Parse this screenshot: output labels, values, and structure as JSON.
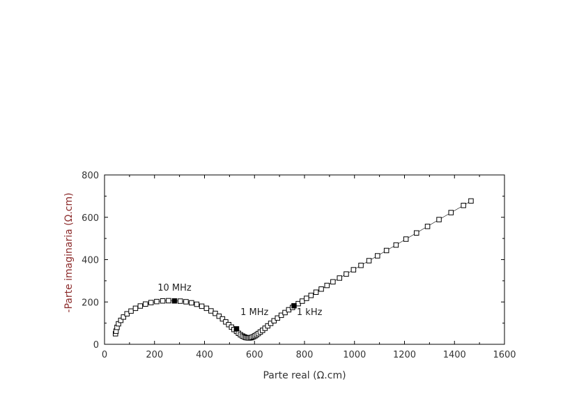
{
  "chart_data": {
    "type": "scatter",
    "xlabel": "Parte real (Ω.cm)",
    "ylabel": "-Parte imaginaria (Ω.cm)",
    "xlim": [
      0,
      1600
    ],
    "ylim": [
      0,
      800
    ],
    "xticks": [
      0,
      200,
      400,
      600,
      800,
      1000,
      1200,
      1400,
      1600
    ],
    "yticks": [
      0,
      200,
      400,
      600,
      800
    ],
    "grid": false,
    "colors": {
      "axis": "#000000",
      "xlabel": "#333333",
      "ylabel": "#8b2a2a",
      "marker": "#000000"
    },
    "series": [
      {
        "marker": "open-square",
        "points": [
          [
            44,
            50
          ],
          [
            46,
            62
          ],
          [
            50,
            80
          ],
          [
            56,
            97
          ],
          [
            65,
            113
          ],
          [
            76,
            129
          ],
          [
            90,
            144
          ],
          [
            106,
            157
          ],
          [
            124,
            170
          ],
          [
            143,
            181
          ],
          [
            164,
            190
          ],
          [
            186,
            197
          ],
          [
            209,
            202
          ],
          [
            233,
            205
          ],
          [
            256,
            206
          ],
          [
            303,
            204
          ],
          [
            326,
            201
          ],
          [
            348,
            196
          ],
          [
            369,
            189
          ],
          [
            389,
            180
          ],
          [
            408,
            170
          ],
          [
            426,
            158
          ],
          [
            443,
            146
          ],
          [
            458,
            133
          ],
          [
            472,
            120
          ],
          [
            485,
            106
          ],
          [
            497,
            93
          ],
          [
            508,
            81
          ],
          [
            518,
            70
          ],
          [
            528,
            61
          ],
          [
            536,
            52
          ],
          [
            544,
            45
          ],
          [
            552,
            39
          ],
          [
            559,
            35
          ],
          [
            565,
            32
          ],
          [
            570,
            31
          ],
          [
            575,
            30
          ],
          [
            580,
            30
          ],
          [
            585,
            31
          ],
          [
            590,
            33
          ],
          [
            596,
            36
          ],
          [
            602,
            40
          ],
          [
            608,
            45
          ],
          [
            615,
            51
          ],
          [
            623,
            58
          ],
          [
            632,
            66
          ],
          [
            642,
            76
          ],
          [
            653,
            87
          ],
          [
            665,
            99
          ],
          [
            678,
            111
          ],
          [
            692,
            124
          ],
          [
            707,
            137
          ],
          [
            722,
            150
          ],
          [
            737,
            163
          ],
          [
            752,
            174
          ],
          [
            775,
            192
          ],
          [
            791,
            204
          ],
          [
            808,
            217
          ],
          [
            826,
            231
          ],
          [
            846,
            246
          ],
          [
            867,
            261
          ],
          [
            890,
            278
          ],
          [
            914,
            295
          ],
          [
            940,
            313
          ],
          [
            967,
            332
          ],
          [
            996,
            352
          ],
          [
            1026,
            373
          ],
          [
            1058,
            395
          ],
          [
            1092,
            418
          ],
          [
            1128,
            443
          ],
          [
            1166,
            469
          ],
          [
            1206,
            497
          ],
          [
            1248,
            526
          ],
          [
            1292,
            557
          ],
          [
            1338,
            589
          ],
          [
            1386,
            622
          ],
          [
            1436,
            656
          ],
          [
            1466,
            677
          ]
        ]
      },
      {
        "marker": "filled-square",
        "points": [
          [
            280,
            205
          ],
          [
            528,
            73
          ],
          [
            758,
            182
          ]
        ]
      }
    ],
    "annotations": [
      {
        "text": "10 MHz",
        "x": 280,
        "y": 253
      },
      {
        "text": "1 MHz",
        "x": 600,
        "y": 138
      },
      {
        "text": "1 kHz",
        "x": 820,
        "y": 138
      }
    ]
  }
}
